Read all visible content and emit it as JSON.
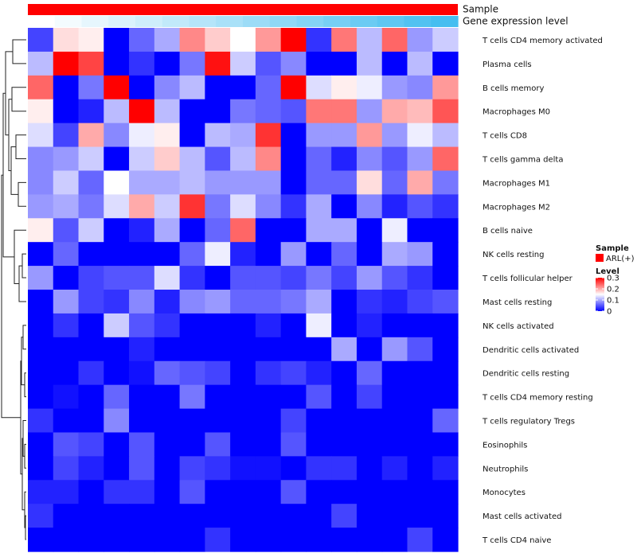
{
  "chart_data": {
    "type": "heatmap",
    "title": "",
    "annotation_labels": {
      "sample": "Sample",
      "expression": "Gene expression level"
    },
    "annotation_sample_color": "#ff0000",
    "legend": {
      "sample_title": "Sample",
      "sample_items": [
        {
          "label": "ARL(+)",
          "color": "#ff0000"
        }
      ],
      "level_title": "Level",
      "level_ticks": [
        {
          "value": 0.3,
          "label": "0.3"
        },
        {
          "value": 0.2,
          "label": "0.2"
        },
        {
          "value": 0.1,
          "label": "0.1"
        },
        {
          "value": 0,
          "label": "0"
        }
      ]
    },
    "colorscale": {
      "min": 0,
      "mid": 0.15,
      "max": 0.3,
      "low_color": "#0000ff",
      "mid_color": "#ffffff",
      "high_color": "#ff0000"
    },
    "expression_level": [
      0.0,
      0.02,
      0.04,
      0.06,
      0.08,
      0.1,
      0.12,
      0.14,
      0.16,
      0.18,
      0.2,
      0.22,
      0.24,
      0.26,
      0.28,
      0.3
    ],
    "rows": [
      "T cells CD4 memory activated",
      "Plasma cells",
      "B cells memory",
      "Macrophages M0",
      "T cells CD8",
      "T cells gamma delta",
      "Macrophages M1",
      "Macrophages M2",
      "B cells naive",
      "NK cells resting",
      "T cells follicular helper",
      "Mast cells resting",
      "NK cells activated",
      "Dendritic cells activated",
      "Dendritic cells resting",
      "T cells CD4 memory resting",
      "T cells regulatory  Tregs",
      "Eosinophils",
      "Neutrophils",
      "Monocytes",
      "Mast cells activated",
      "T cells CD4 naive"
    ],
    "values": [
      [
        0.04,
        0.17,
        0.16,
        0.0,
        0.06,
        0.1,
        0.22,
        0.18,
        0.15,
        0.21,
        0.3,
        0.03,
        0.23,
        0.11,
        0.24,
        0.09,
        0.12
      ],
      [
        0.11,
        0.3,
        0.26,
        0.0,
        0.03,
        0.0,
        0.07,
        0.29,
        0.12,
        0.05,
        0.08,
        0.0,
        0.0,
        0.11,
        0.0,
        0.11,
        0.0
      ],
      [
        0.24,
        0.0,
        0.07,
        0.3,
        0.0,
        0.08,
        0.11,
        0.0,
        0.0,
        0.06,
        0.3,
        0.13,
        0.16,
        0.14,
        0.09,
        0.08,
        0.21
      ],
      [
        0.16,
        0.0,
        0.02,
        0.11,
        0.3,
        0.11,
        0.0,
        0.0,
        0.07,
        0.06,
        0.05,
        0.23,
        0.23,
        0.09,
        0.2,
        0.19,
        0.25
      ],
      [
        0.13,
        0.04,
        0.2,
        0.08,
        0.14,
        0.16,
        0.0,
        0.11,
        0.1,
        0.27,
        0.0,
        0.09,
        0.09,
        0.21,
        0.09,
        0.14,
        0.11
      ],
      [
        0.08,
        0.09,
        0.12,
        0.0,
        0.12,
        0.18,
        0.11,
        0.05,
        0.11,
        0.22,
        0.0,
        0.06,
        0.02,
        0.08,
        0.05,
        0.09,
        0.24
      ],
      [
        0.08,
        0.12,
        0.06,
        0.15,
        0.1,
        0.1,
        0.11,
        0.09,
        0.09,
        0.09,
        0.0,
        0.06,
        0.06,
        0.17,
        0.06,
        0.2,
        0.07
      ],
      [
        0.09,
        0.1,
        0.07,
        0.13,
        0.2,
        0.12,
        0.27,
        0.07,
        0.13,
        0.08,
        0.03,
        0.1,
        0.0,
        0.08,
        0.02,
        0.05,
        0.03
      ],
      [
        0.16,
        0.05,
        0.12,
        0.0,
        0.02,
        0.1,
        0.0,
        0.06,
        0.24,
        0.0,
        0.0,
        0.1,
        0.1,
        0.0,
        0.14,
        0.0,
        0.0
      ],
      [
        0.0,
        0.06,
        0.0,
        0.0,
        0.0,
        0.0,
        0.06,
        0.14,
        0.02,
        0.0,
        0.09,
        0.0,
        0.06,
        0.0,
        0.1,
        0.09,
        0.0
      ],
      [
        0.09,
        0.0,
        0.04,
        0.05,
        0.05,
        0.13,
        0.03,
        0.0,
        0.05,
        0.05,
        0.04,
        0.07,
        0.04,
        0.09,
        0.05,
        0.03,
        0.0
      ],
      [
        0.0,
        0.09,
        0.04,
        0.03,
        0.08,
        0.02,
        0.08,
        0.09,
        0.06,
        0.06,
        0.07,
        0.1,
        0.0,
        0.03,
        0.02,
        0.04,
        0.05
      ],
      [
        0.0,
        0.03,
        0.0,
        0.12,
        0.05,
        0.03,
        0.0,
        0.0,
        0.0,
        0.02,
        0.0,
        0.14,
        0.0,
        0.02,
        0.0,
        0.0,
        0.0
      ],
      [
        0.0,
        0.0,
        0.0,
        0.0,
        0.02,
        0.0,
        0.0,
        0.0,
        0.0,
        0.0,
        0.0,
        0.0,
        0.1,
        0.0,
        0.09,
        0.05,
        0.0
      ],
      [
        0.0,
        0.0,
        0.03,
        0.0,
        0.01,
        0.06,
        0.05,
        0.04,
        0.0,
        0.03,
        0.04,
        0.02,
        0.0,
        0.06,
        0.0,
        0.0,
        0.0
      ],
      [
        0.0,
        0.01,
        0.0,
        0.06,
        0.0,
        0.0,
        0.07,
        0.0,
        0.0,
        0.0,
        0.0,
        0.05,
        0.0,
        0.04,
        0.0,
        0.0,
        0.0
      ],
      [
        0.03,
        0.0,
        0.0,
        0.08,
        0.0,
        0.0,
        0.0,
        0.0,
        0.0,
        0.0,
        0.04,
        0.0,
        0.0,
        0.0,
        0.0,
        0.0,
        0.06
      ],
      [
        0.0,
        0.05,
        0.04,
        0.0,
        0.05,
        0.0,
        0.0,
        0.05,
        0.0,
        0.0,
        0.05,
        0.0,
        0.0,
        0.0,
        0.0,
        0.0,
        0.0
      ],
      [
        0.0,
        0.04,
        0.02,
        0.0,
        0.05,
        0.0,
        0.04,
        0.03,
        0.01,
        0.01,
        0.0,
        0.03,
        0.03,
        0.0,
        0.02,
        0.0,
        0.02
      ],
      [
        0.02,
        0.02,
        0.0,
        0.03,
        0.03,
        0.0,
        0.05,
        0.0,
        0.0,
        0.0,
        0.05,
        0.0,
        0.0,
        0.0,
        0.0,
        0.0,
        0.0
      ],
      [
        0.03,
        0.0,
        0.0,
        0.0,
        0.0,
        0.0,
        0.0,
        0.0,
        0.0,
        0.0,
        0.0,
        0.0,
        0.04,
        0.0,
        0.0,
        0.0,
        0.0
      ],
      [
        0.0,
        0.0,
        0.0,
        0.0,
        0.0,
        0.0,
        0.0,
        0.03,
        0.0,
        0.0,
        0.0,
        0.0,
        0.0,
        0.0,
        0.0,
        0.04,
        0.0
      ]
    ]
  }
}
